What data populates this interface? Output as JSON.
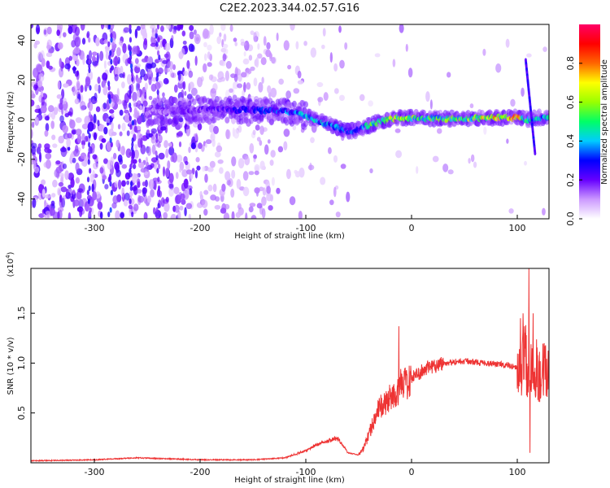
{
  "title": "C2E2.2023.344.02.57.G16",
  "chart_data": [
    {
      "type": "heatmap",
      "name": "spectrogram",
      "xlabel": "Height of straight line (km)",
      "ylabel": "Frequency (Hz)",
      "xlim": [
        -360,
        130
      ],
      "ylim": [
        -50,
        48
      ],
      "xticks": [
        -300,
        -200,
        -100,
        0,
        100
      ],
      "yticks": [
        -40,
        -20,
        0,
        20,
        40
      ],
      "colorbar": {
        "label": "Normalized spectral amplitude",
        "range": [
          0,
          1
        ],
        "ticks": [
          "0.0",
          "0.2",
          "0.4",
          "0.6",
          "0.8"
        ],
        "colors": [
          "#ffffff",
          "#cc99ff",
          "#6600ff",
          "#0000ff",
          "#00ccff",
          "#00ff66",
          "#99ff00",
          "#ffff00",
          "#ff6600",
          "#ff0000",
          "#ff0066"
        ]
      },
      "ridge": {
        "x": [
          -250,
          -200,
          -150,
          -120,
          -100,
          -80,
          -60,
          -50,
          -40,
          -30,
          -20,
          -10,
          0,
          25,
          50,
          75,
          100,
          110,
          120,
          130
        ],
        "y": [
          4,
          5,
          5,
          4,
          2,
          -2,
          -6,
          -5,
          -3,
          -1,
          0,
          1,
          1,
          0.5,
          0.5,
          1,
          1,
          0,
          1,
          1
        ],
        "amplitude": [
          0.15,
          0.2,
          0.3,
          0.35,
          0.45,
          0.4,
          0.35,
          0.35,
          0.5,
          0.6,
          0.7,
          0.65,
          0.6,
          0.55,
          0.6,
          0.8,
          0.85,
          0.5,
          0.5,
          0.45
        ]
      },
      "streak": {
        "x": [
          108,
          117
        ],
        "y": [
          30,
          -18
        ]
      }
    },
    {
      "type": "line",
      "name": "snr",
      "xlabel": "Height of straight line (km)",
      "ylabel": "SNR (10 * v/v)",
      "scale_label": "(x10",
      "scale_exp": "4",
      "scale_close": ")",
      "xlim": [
        -360,
        130
      ],
      "ylim": [
        0,
        1.95
      ],
      "xticks": [
        -300,
        -200,
        -100,
        0,
        100
      ],
      "yticks": [
        "0.5",
        "1.0",
        "1.5"
      ],
      "ytick_values": [
        0.5,
        1.0,
        1.5
      ],
      "color": "#ee3333",
      "envelope": {
        "x": [
          -360,
          -300,
          -260,
          -200,
          -150,
          -120,
          -100,
          -90,
          -80,
          -70,
          -60,
          -50,
          -45,
          -40,
          -35,
          -30,
          -25,
          -20,
          -15,
          -10,
          -5,
          0,
          10,
          20,
          30,
          40,
          50,
          60,
          70,
          80,
          90,
          100,
          103,
          106,
          108,
          110,
          112,
          114,
          116,
          118,
          120,
          125,
          130
        ],
        "y": [
          0.02,
          0.03,
          0.05,
          0.03,
          0.03,
          0.05,
          0.12,
          0.18,
          0.22,
          0.25,
          0.1,
          0.08,
          0.15,
          0.3,
          0.45,
          0.55,
          0.6,
          0.65,
          0.7,
          0.78,
          0.8,
          0.85,
          0.92,
          0.97,
          1.0,
          1.01,
          1.02,
          1.01,
          1.0,
          0.99,
          0.98,
          0.95,
          0.9,
          1.2,
          1.1,
          0.9,
          1.05,
          0.9,
          0.95,
          0.95,
          0.92,
          0.92,
          0.91
        ]
      },
      "spikes": [
        {
          "x": -12,
          "y": 1.37
        },
        {
          "x": 103,
          "y": 1.45
        },
        {
          "x": 111,
          "y": 1.95
        },
        {
          "x": 115,
          "y": 1.5
        },
        {
          "x": 112,
          "y": 0.1
        }
      ]
    }
  ]
}
